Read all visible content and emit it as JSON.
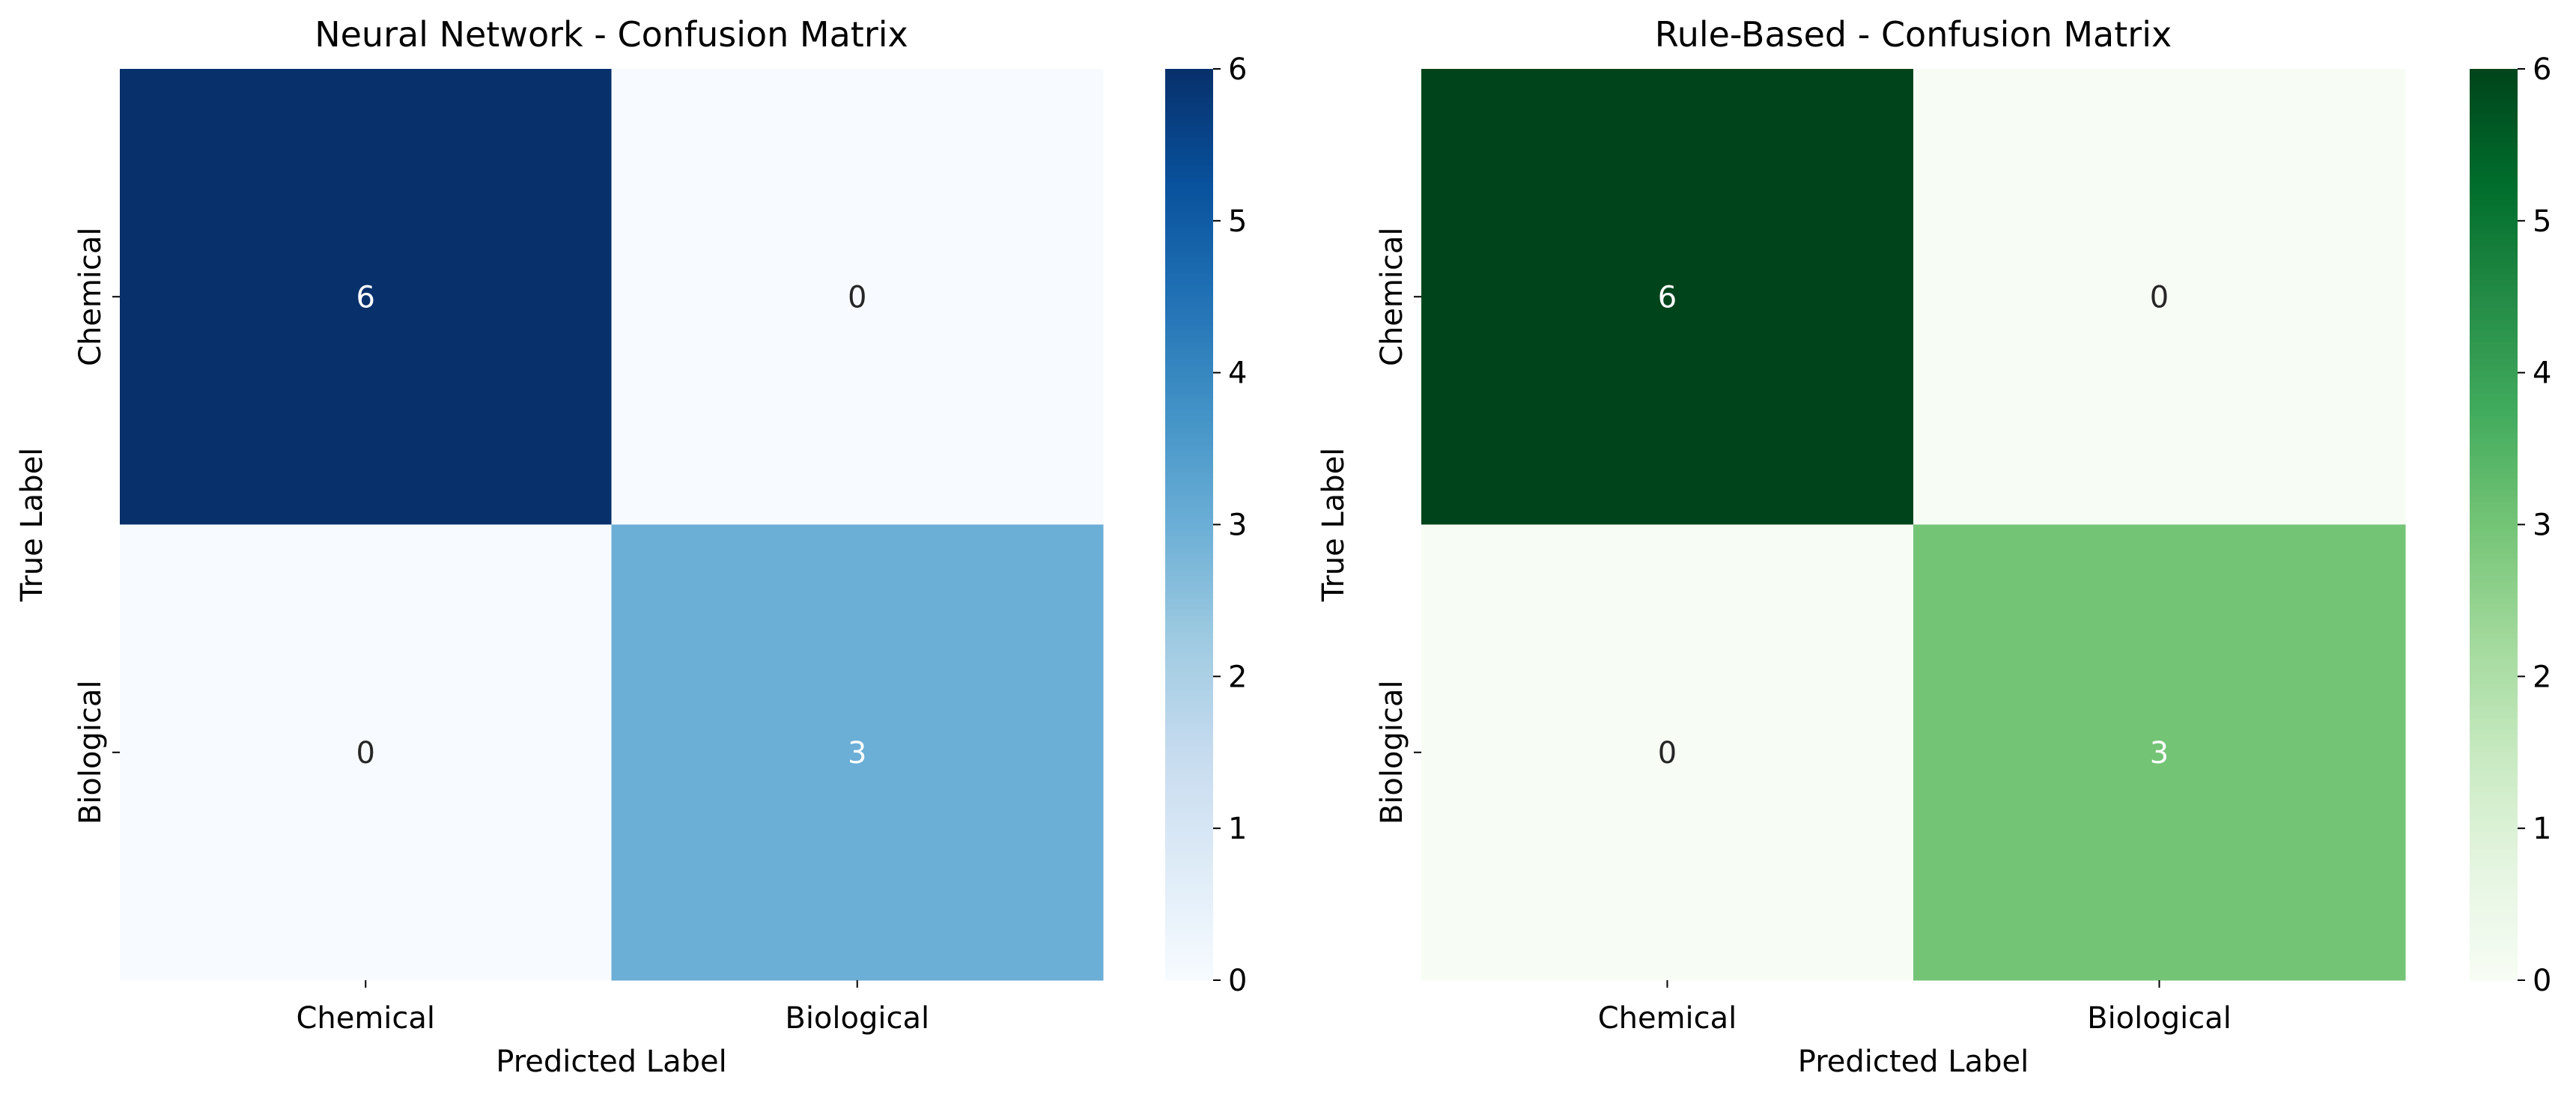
{
  "chart_data": [
    {
      "type": "heatmap",
      "title": "Neural Network - Confusion Matrix",
      "xlabel": "Predicted Label",
      "ylabel": "True Label",
      "x_categories": [
        "Chemical",
        "Biological"
      ],
      "y_categories": [
        "Chemical",
        "Biological"
      ],
      "values": [
        [
          6,
          0
        ],
        [
          0,
          3
        ]
      ],
      "annotations": [
        [
          "6",
          "0"
        ],
        [
          "0",
          "3"
        ]
      ],
      "colormap": "Blues",
      "color_low": "#f7fbff",
      "color_high": "#08306b",
      "colorbar": {
        "range": [
          0,
          6
        ],
        "ticks": [
          "0",
          "1",
          "2",
          "3",
          "4",
          "5",
          "6"
        ]
      }
    },
    {
      "type": "heatmap",
      "title": "Rule-Based - Confusion Matrix",
      "xlabel": "Predicted Label",
      "ylabel": "True Label",
      "x_categories": [
        "Chemical",
        "Biological"
      ],
      "y_categories": [
        "Chemical",
        "Biological"
      ],
      "values": [
        [
          6,
          0
        ],
        [
          0,
          3
        ]
      ],
      "annotations": [
        [
          "6",
          "0"
        ],
        [
          "0",
          "3"
        ]
      ],
      "colormap": "Greens",
      "color_low": "#f7fcf5",
      "color_high": "#00441b",
      "colorbar": {
        "range": [
          0,
          6
        ],
        "ticks": [
          "0",
          "1",
          "2",
          "3",
          "4",
          "5",
          "6"
        ]
      }
    }
  ]
}
